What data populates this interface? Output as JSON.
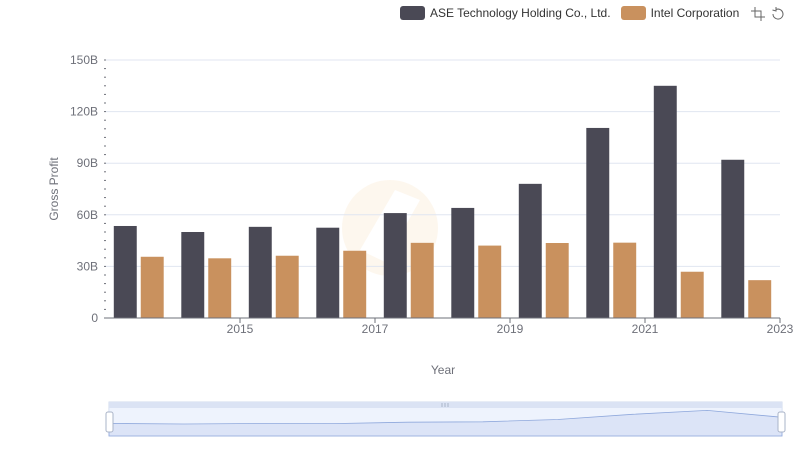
{
  "colors": {
    "ase": "#4a4955",
    "intel": "#c9915e",
    "grid": "#e0e6f1",
    "axis": "#6e7079"
  },
  "toolbox": {
    "icons": [
      "zoom-icon",
      "restore-icon"
    ]
  },
  "chart_data": {
    "type": "bar",
    "x": [
      2014,
      2015,
      2016,
      2017,
      2018,
      2019,
      2020,
      2021,
      2022,
      2023
    ],
    "x_tick_labels": [
      "2015",
      "2017",
      "2019",
      "2021",
      "2023"
    ],
    "x_tick_values": [
      2015,
      2017,
      2019,
      2021,
      2023
    ],
    "series": [
      {
        "name": "ASE Technology Holding Co., Ltd.",
        "values": [
          53.5,
          50,
          53,
          52.5,
          61,
          64,
          78,
          110.5,
          135,
          92
        ]
      },
      {
        "name": "Intel Corporation",
        "values": [
          35.6,
          34.7,
          36.2,
          39.1,
          43.7,
          42.1,
          43.6,
          43.8,
          26.9,
          22
        ]
      }
    ],
    "xlabel": "Year",
    "ylabel": "Gross Profit",
    "ylim": [
      0,
      150
    ],
    "y_tick_values": [
      0,
      30,
      60,
      90,
      120,
      150
    ],
    "y_tick_labels": [
      "0",
      "30B",
      "60B",
      "90B",
      "120B",
      "150B"
    ],
    "grid": true,
    "legend": "top-right",
    "has_zoom_slider": true
  }
}
